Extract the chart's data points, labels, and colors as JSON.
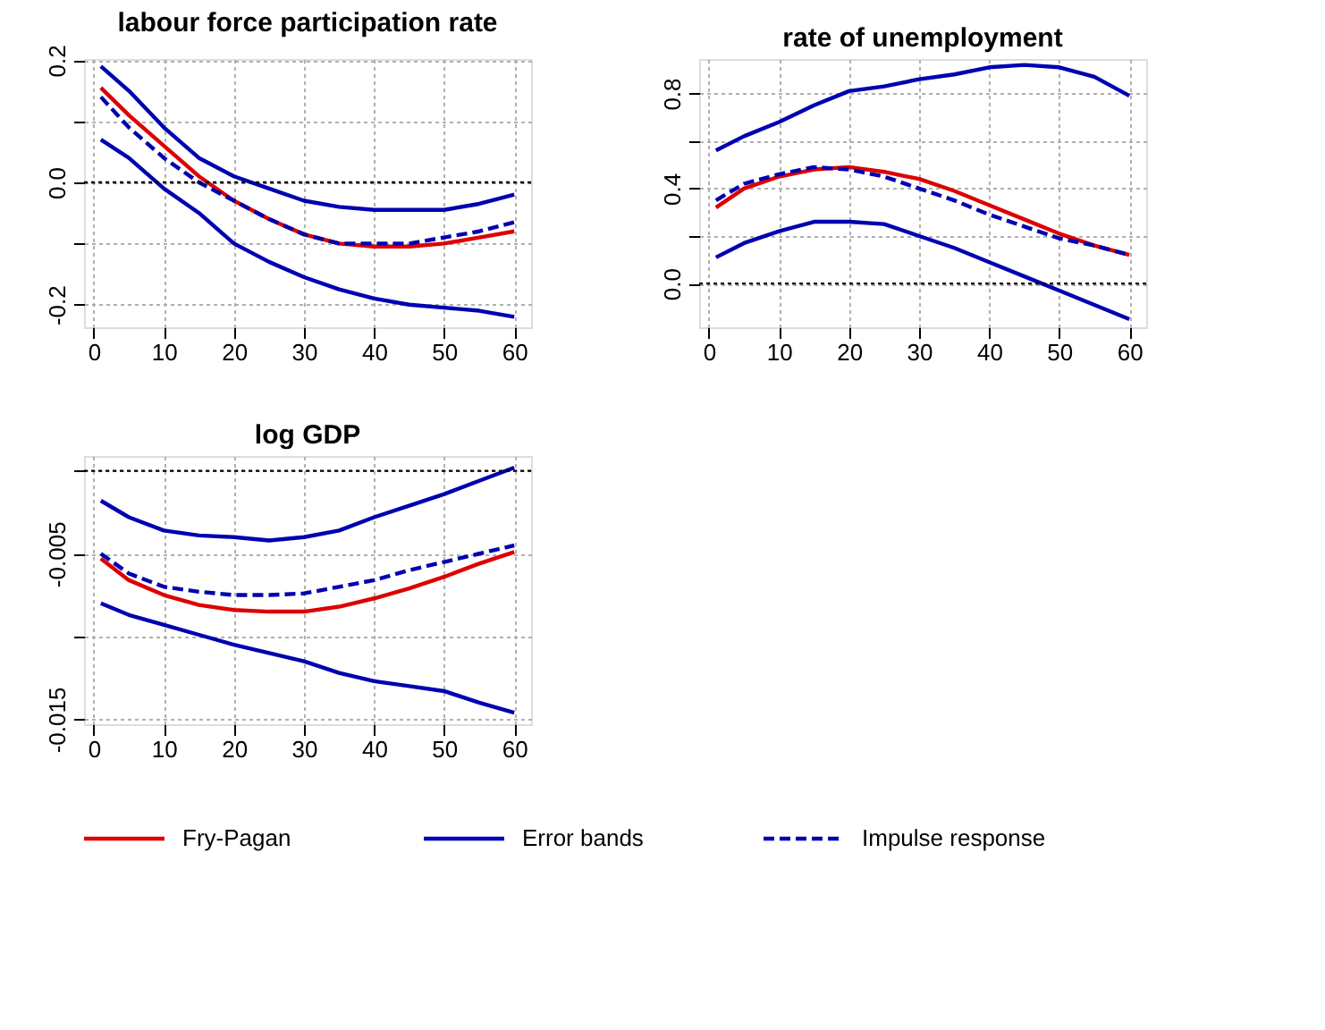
{
  "chart_data": [
    {
      "type": "line",
      "title": "labour force participation rate",
      "x": [
        1,
        5,
        10,
        15,
        20,
        25,
        30,
        35,
        40,
        45,
        50,
        55,
        60
      ],
      "xlim": [
        -1.4,
        62.4
      ],
      "xticks": [
        0,
        10,
        20,
        30,
        40,
        50,
        60
      ],
      "ylim": [
        -0.237,
        0.202
      ],
      "yticks": [
        -0.2,
        {
          "value": -0.1,
          "label": null
        },
        {
          "value": 0,
          "label": "0.0"
        },
        {
          "value": 0.1,
          "label": null
        },
        0.2
      ],
      "grid": true,
      "legend": "bottom",
      "marker": "none",
      "ref_lines": [
        {
          "axis": "y",
          "value": 0,
          "color": "#000000",
          "line_style": "dotted"
        }
      ],
      "series": [
        {
          "name": "Fry-Pagan",
          "color": "#dd0000",
          "line_style": "solid",
          "values": [
            0.155,
            0.11,
            0.06,
            0.01,
            -0.03,
            -0.06,
            -0.085,
            -0.1,
            -0.105,
            -0.105,
            -0.1,
            -0.09,
            -0.08
          ]
        },
        {
          "name": "Error bands",
          "color": "#0000b0",
          "line_style": "solid",
          "values": [
            0.19,
            0.15,
            0.09,
            0.04,
            0.01,
            -0.01,
            -0.03,
            -0.04,
            -0.045,
            -0.045,
            -0.045,
            -0.035,
            -0.02
          ]
        },
        {
          "color": "#0000b0",
          "line_style": "solid",
          "values": [
            0.07,
            0.04,
            -0.01,
            -0.05,
            -0.1,
            -0.13,
            -0.155,
            -0.175,
            -0.19,
            -0.2,
            -0.205,
            -0.21,
            -0.22
          ]
        },
        {
          "name": "Impulse response",
          "color": "#0000b0",
          "line_style": "dashed",
          "values": [
            0.14,
            0.09,
            0.04,
            0.0,
            -0.03,
            -0.06,
            -0.085,
            -0.1,
            -0.1,
            -0.1,
            -0.09,
            -0.08,
            -0.065
          ]
        }
      ]
    },
    {
      "type": "line",
      "title": "rate of unemployment",
      "x": [
        1,
        5,
        10,
        15,
        20,
        25,
        30,
        35,
        40,
        45,
        50,
        55,
        60
      ],
      "xlim": [
        -1.4,
        62.4
      ],
      "xticks": [
        0,
        10,
        20,
        30,
        40,
        50,
        60
      ],
      "ylim": [
        -0.184,
        0.945
      ],
      "yticks": [
        {
          "value": 0,
          "label": "0.0"
        },
        {
          "value": 0.2,
          "label": null
        },
        0.4,
        {
          "value": 0.6,
          "label": null
        },
        0.8
      ],
      "grid": true,
      "legend": "bottom",
      "marker": "none",
      "ref_lines": [
        {
          "axis": "y",
          "value": 0,
          "color": "#000000",
          "line_style": "dotted"
        }
      ],
      "series": [
        {
          "name": "Fry-Pagan",
          "color": "#dd0000",
          "line_style": "solid",
          "values": [
            0.32,
            0.4,
            0.45,
            0.48,
            0.49,
            0.47,
            0.44,
            0.39,
            0.33,
            0.27,
            0.21,
            0.16,
            0.12
          ]
        },
        {
          "name": "Error bands",
          "color": "#0000b0",
          "line_style": "solid",
          "values": [
            0.56,
            0.62,
            0.68,
            0.75,
            0.81,
            0.83,
            0.86,
            0.88,
            0.91,
            0.92,
            0.91,
            0.87,
            0.79
          ]
        },
        {
          "color": "#0000b0",
          "line_style": "solid",
          "values": [
            0.11,
            0.17,
            0.22,
            0.26,
            0.26,
            0.25,
            0.2,
            0.15,
            0.09,
            0.03,
            -0.03,
            -0.09,
            -0.15
          ]
        },
        {
          "name": "Impulse response",
          "color": "#0000b0",
          "line_style": "dashed",
          "values": [
            0.35,
            0.42,
            0.46,
            0.49,
            0.48,
            0.45,
            0.4,
            0.35,
            0.29,
            0.24,
            0.19,
            0.16,
            0.12
          ]
        }
      ]
    },
    {
      "type": "line",
      "title": "log GDP",
      "x": [
        1,
        5,
        10,
        15,
        20,
        25,
        30,
        35,
        40,
        45,
        50,
        55,
        60
      ],
      "xlim": [
        -1.4,
        62.4
      ],
      "xticks": [
        0,
        10,
        20,
        30,
        40,
        50,
        60
      ],
      "ylim": [
        -0.0153,
        0.0009
      ],
      "yticks": [
        {
          "value": -0.015,
          "label": "-0.015"
        },
        {
          "value": -0.01,
          "label": null
        },
        {
          "value": -0.005,
          "label": "-0.005"
        },
        {
          "value": 0,
          "label": null
        }
      ],
      "grid": true,
      "legend": "bottom",
      "marker": "none",
      "ref_lines": [
        {
          "axis": "y",
          "value": 0,
          "color": "#000000",
          "line_style": "dotted"
        }
      ],
      "series": [
        {
          "name": "Fry-Pagan",
          "color": "#dd0000",
          "line_style": "solid",
          "values": [
            -0.0053,
            -0.0066,
            -0.0075,
            -0.0081,
            -0.0084,
            -0.0085,
            -0.0085,
            -0.0082,
            -0.0077,
            -0.0071,
            -0.0064,
            -0.0056,
            -0.0049
          ]
        },
        {
          "name": "Error bands",
          "color": "#0000b0",
          "line_style": "solid",
          "values": [
            -0.0018,
            -0.0028,
            -0.0036,
            -0.0039,
            -0.004,
            -0.0042,
            -0.004,
            -0.0036,
            -0.0028,
            -0.0021,
            -0.0014,
            -0.0006,
            0.0002
          ]
        },
        {
          "color": "#0000b0",
          "line_style": "solid",
          "values": [
            -0.008,
            -0.0087,
            -0.0093,
            -0.0099,
            -0.0105,
            -0.011,
            -0.0115,
            -0.0122,
            -0.0127,
            -0.013,
            -0.0133,
            -0.014,
            -0.0146
          ]
        },
        {
          "name": "Impulse response",
          "color": "#0000b0",
          "line_style": "dashed",
          "values": [
            -0.005,
            -0.0062,
            -0.007,
            -0.0073,
            -0.0075,
            -0.0075,
            -0.0074,
            -0.007,
            -0.0066,
            -0.006,
            -0.0055,
            -0.005,
            -0.0045
          ]
        }
      ]
    }
  ]
}
